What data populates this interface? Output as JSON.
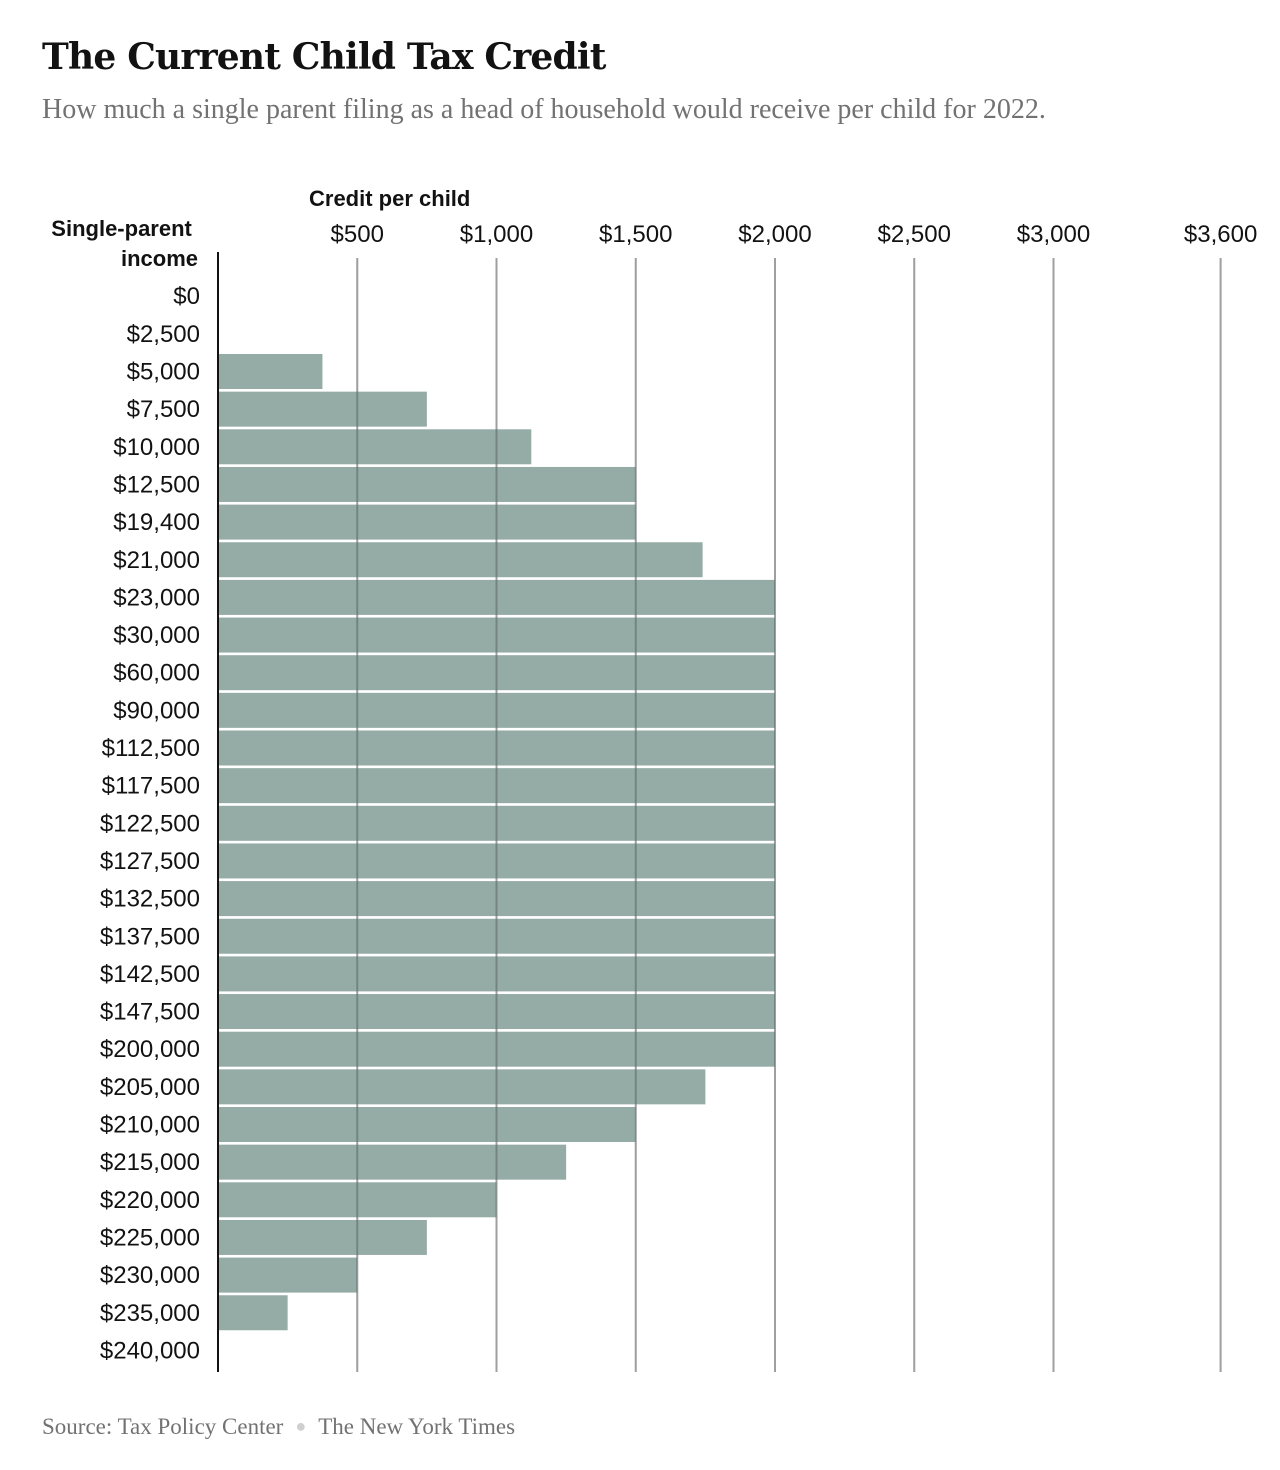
{
  "header": {
    "title": "The Current Child Tax Credit",
    "subtitle": "How much a single parent filing as a head of household would receive per child for 2022."
  },
  "footer": {
    "source": "Source: Tax Policy Center",
    "publisher": "The New York Times"
  },
  "chart_data": {
    "type": "bar",
    "orientation": "horizontal",
    "xlabel": "Credit per child",
    "ylabel": "Single-parent income",
    "x_ticks": [
      {
        "value": 500,
        "label": "$500"
      },
      {
        "value": 1000,
        "label": "$1,000"
      },
      {
        "value": 1500,
        "label": "$1,500"
      },
      {
        "value": 2000,
        "label": "$2,000"
      },
      {
        "value": 2500,
        "label": "$2,500"
      },
      {
        "value": 3000,
        "label": "$3,000"
      },
      {
        "value": 3600,
        "label": "$3,600"
      }
    ],
    "xlim": [
      0,
      3600
    ],
    "categories": [
      "$0",
      "$2,500",
      "$5,000",
      "$7,500",
      "$10,000",
      "$12,500",
      "$19,400",
      "$21,000",
      "$23,000",
      "$30,000",
      "$60,000",
      "$90,000",
      "$112,500",
      "$117,500",
      "$122,500",
      "$127,500",
      "$132,500",
      "$137,500",
      "$142,500",
      "$147,500",
      "$200,000",
      "$205,000",
      "$210,000",
      "$215,000",
      "$220,000",
      "$225,000",
      "$230,000",
      "$235,000",
      "$240,000"
    ],
    "values": [
      0,
      0,
      375,
      750,
      1125,
      1500,
      1500,
      1740,
      2000,
      2000,
      2000,
      2000,
      2000,
      2000,
      2000,
      2000,
      2000,
      2000,
      2000,
      2000,
      2000,
      1750,
      1500,
      1250,
      1000,
      750,
      500,
      250,
      0
    ],
    "bar_color": "#95aba6",
    "grid": true
  }
}
